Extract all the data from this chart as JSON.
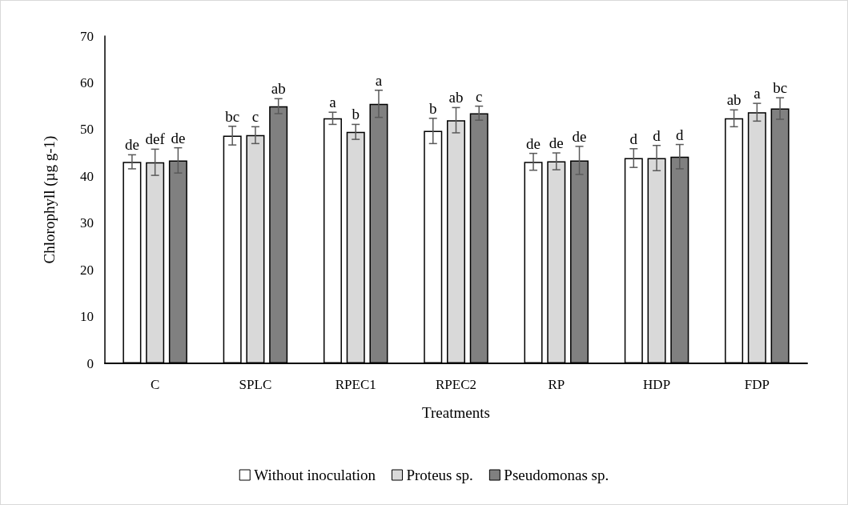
{
  "chart_data": {
    "type": "bar",
    "xlabel": "Treatments",
    "ylabel": "Chlorophyll (µg g-1)",
    "categories": [
      "C",
      "SPLC",
      "RPEC1",
      "RPEC2",
      "RP",
      "HDP",
      "FDP"
    ],
    "series": [
      {
        "name": "Without inoculation",
        "color": "#ffffff",
        "values": [
          43.1,
          48.7,
          52.4,
          49.7,
          43.1,
          43.9,
          52.4
        ],
        "errors": [
          1.5,
          2.0,
          1.3,
          2.7,
          1.8,
          2.0,
          1.8
        ],
        "value_labels": [
          "de",
          "bc",
          "a",
          "b",
          "de",
          "d",
          "ab"
        ]
      },
      {
        "name": "Proteus sp.",
        "color": "#d9d9d9",
        "values": [
          43.0,
          48.8,
          49.5,
          52.0,
          43.2,
          43.9,
          53.7
        ],
        "errors": [
          2.8,
          1.8,
          1.6,
          2.7,
          1.8,
          2.7,
          1.9
        ],
        "value_labels": [
          "def",
          "c",
          "b",
          "ab",
          "de",
          "d",
          "a"
        ]
      },
      {
        "name": "Pseudomonas sp.",
        "color": "#808080",
        "values": [
          43.4,
          55.0,
          55.5,
          53.5,
          43.4,
          44.2,
          54.5
        ],
        "errors": [
          2.7,
          1.6,
          2.9,
          1.5,
          3.0,
          2.6,
          2.3
        ],
        "value_labels": [
          "de",
          "ab",
          "a",
          "c",
          "de",
          "d",
          "bc"
        ]
      }
    ],
    "ylim": [
      0,
      70
    ],
    "yticks": [
      0,
      10,
      20,
      30,
      40,
      50,
      60,
      70
    ],
    "grid": false,
    "legend": "bottom"
  }
}
